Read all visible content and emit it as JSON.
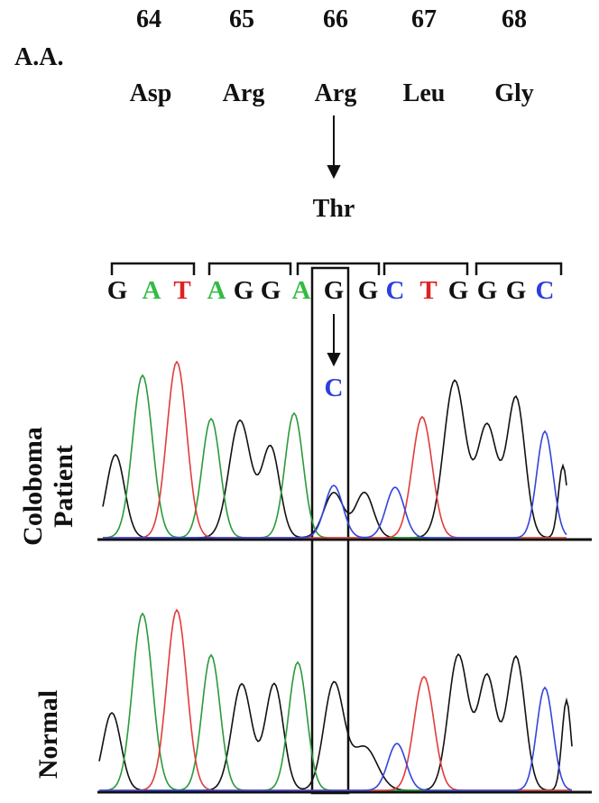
{
  "header": {
    "aa_label": "A.A."
  },
  "positions": [
    "64",
    "65",
    "66",
    "67",
    "68"
  ],
  "amino_acids": [
    "Asp",
    "Arg",
    "Arg",
    "Leu",
    "Gly"
  ],
  "mutant_amino_acid": "Thr",
  "sequence": [
    {
      "base": "G",
      "color": "#111111"
    },
    {
      "base": "A",
      "color": "#33bb44"
    },
    {
      "base": "T",
      "color": "#e02020"
    },
    {
      "base": "A",
      "color": "#33bb44"
    },
    {
      "base": "G",
      "color": "#111111"
    },
    {
      "base": "G",
      "color": "#111111"
    },
    {
      "base": "A",
      "color": "#33bb44"
    },
    {
      "base": "G",
      "color": "#111111"
    },
    {
      "base": "G",
      "color": "#111111"
    },
    {
      "base": "C",
      "color": "#2a3fdc"
    },
    {
      "base": "T",
      "color": "#e02020"
    },
    {
      "base": "G",
      "color": "#111111"
    },
    {
      "base": "G",
      "color": "#111111"
    },
    {
      "base": "G",
      "color": "#111111"
    },
    {
      "base": "C",
      "color": "#2a3fdc"
    }
  ],
  "mutant_base": {
    "base": "C",
    "color": "#2a3fdc"
  },
  "traces": [
    {
      "label_line1": "Coloboma",
      "label_line2": "Patient"
    },
    {
      "label_line1": "Normal",
      "label_line2": ""
    }
  ],
  "trace_colors": {
    "G": "#111111",
    "A": "#2a9a3a",
    "T": "#e03c3c",
    "C": "#3344dd"
  }
}
